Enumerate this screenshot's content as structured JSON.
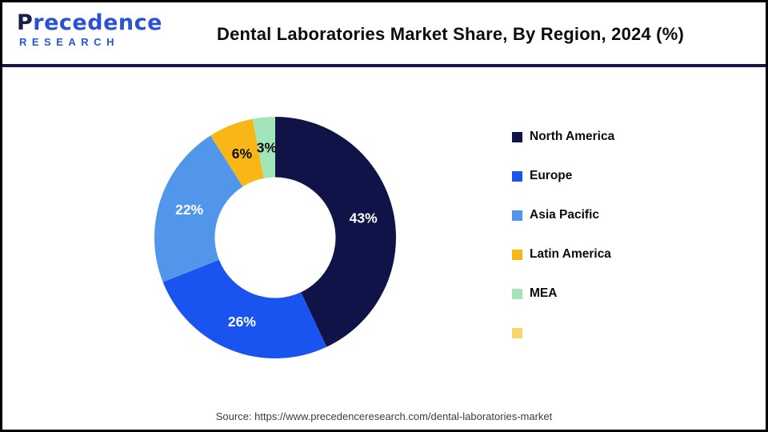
{
  "header": {
    "logo": {
      "brand_first_letter": "P",
      "brand_rest": "recedence",
      "brand_subtitle": "RESEARCH"
    },
    "title": "Dental Laboratories Market Share, By Region, 2024 (%)"
  },
  "chart_data": {
    "type": "pie",
    "subtype": "donut",
    "title": "Dental Laboratories Market Share, By Region, 2024 (%)",
    "unit": "%",
    "start_at": "top",
    "direction": "clockwise",
    "donut_hole_ratio": 0.5,
    "legend_position": "right",
    "categories": [
      "North America",
      "Europe",
      "Asia Pacific",
      "Latin America",
      "MEA"
    ],
    "values": [
      43,
      26,
      22,
      6,
      3
    ],
    "series": [
      {
        "label": "North America",
        "value": 43,
        "value_label": "43%",
        "color": "#101347",
        "value_label_color": "#ffffff"
      },
      {
        "label": "Europe",
        "value": 26,
        "value_label": "26%",
        "color": "#1a54f0",
        "value_label_color": "#ffffff"
      },
      {
        "label": "Asia Pacific",
        "value": 22,
        "value_label": "22%",
        "color": "#5296ec",
        "value_label_color": "#ffffff"
      },
      {
        "label": "Latin America",
        "value": 6,
        "value_label": "6%",
        "color": "#f8b717",
        "value_label_color": "#0d0d0d"
      },
      {
        "label": "MEA",
        "value": 3,
        "value_label": "3%",
        "color": "#a3e5bb",
        "value_label_color": "#0d0d0d"
      }
    ],
    "extra_legend_item": {
      "label": "",
      "color": "#fad46e"
    }
  },
  "footer": {
    "source": "Source: https://www.precedenceresearch.com/dental-laboratories-market"
  },
  "colors": {
    "background": "#ffffff",
    "outer_border": "#000000",
    "header_divider": "#151747",
    "logo_navy": "#161e4e",
    "logo_blue": "#2b52d4"
  }
}
